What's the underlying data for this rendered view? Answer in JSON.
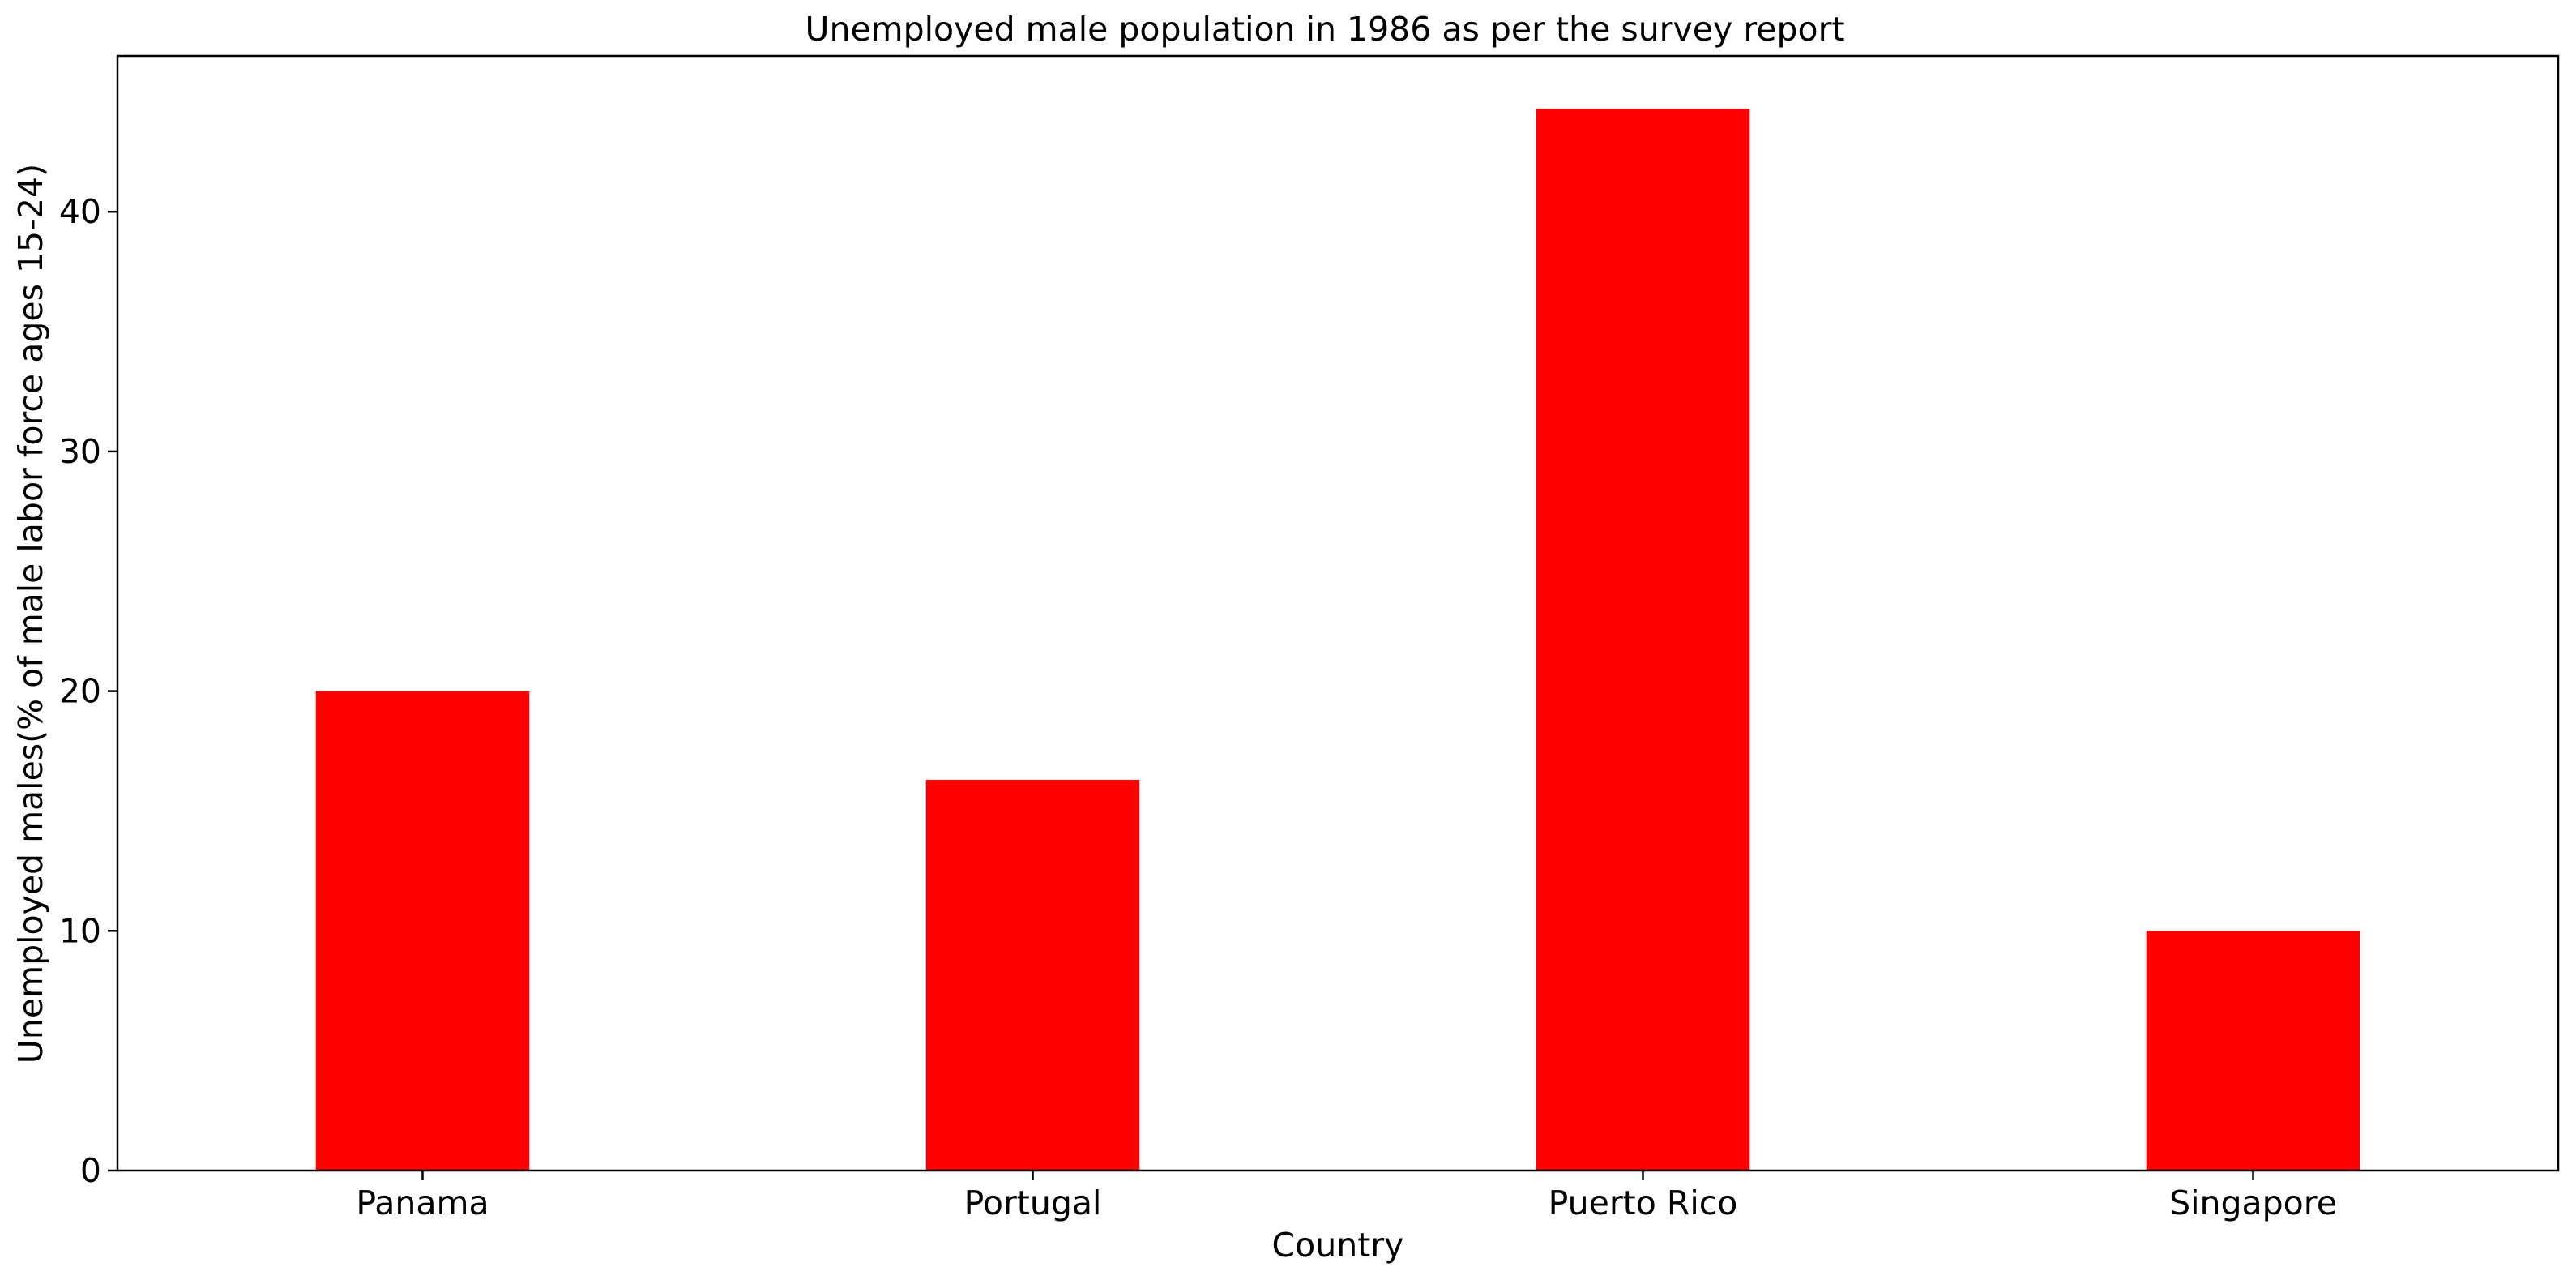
{
  "chart_data": {
    "type": "bar",
    "title": "Unemployed male population in 1986 as per the survey report",
    "xlabel": "Country",
    "ylabel": "Unemployed males(% of male labor force ages 15-24)",
    "categories": [
      "Panama",
      "Portugal",
      "Puerto Rico",
      "Singapore"
    ],
    "values": [
      20.0,
      16.3,
      44.3,
      10.0
    ],
    "ylim": [
      0,
      46.5
    ],
    "yticks": [
      0,
      10,
      20,
      30,
      40
    ],
    "bar_color": "#ff0000",
    "grid": false,
    "legend": "none"
  }
}
